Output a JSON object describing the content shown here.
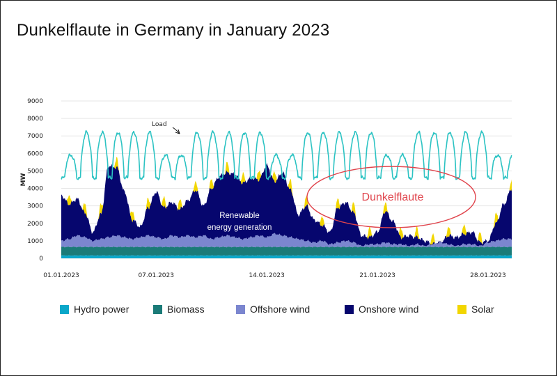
{
  "title": "Dunkelflaute in Germany in January 2023",
  "chart_data": {
    "type": "area",
    "title": "Dunkelflaute in Germany in January 2023",
    "ylabel": "MW",
    "ylim": [
      0,
      9000
    ],
    "yticks": [
      0,
      1000,
      2000,
      3000,
      4000,
      5000,
      6000,
      7000,
      8000,
      9000
    ],
    "xlim_day": [
      1,
      29.5
    ],
    "xticks": [
      {
        "label": "01.01.2023",
        "day": 1
      },
      {
        "label": "07.01.2023",
        "day": 7
      },
      {
        "label": "14.01.2023",
        "day": 14
      },
      {
        "label": "21.01.2023",
        "day": 21
      },
      {
        "label": "28.01.2023",
        "day": 28
      }
    ],
    "grid": true,
    "legend_position": "bottom",
    "colors": {
      "hydro": "#0aa7c9",
      "biomass": "#1b7b78",
      "offshore": "#7b86cf",
      "onshore": "#06066e",
      "solar": "#f2d600",
      "load": "#2cc3c3",
      "dunkelflaute": "#e0444c",
      "grid": "#e6e6e6"
    },
    "series": [
      {
        "name": "Hydro power",
        "key": "hydro"
      },
      {
        "name": "Biomass",
        "key": "biomass"
      },
      {
        "name": "Offshore wind",
        "key": "offshore"
      },
      {
        "name": "Onshore wind",
        "key": "onshore"
      },
      {
        "name": "Solar",
        "key": "solar"
      }
    ],
    "load": {
      "name": "Load",
      "daily_min_mw": 4600,
      "weekday_peak_mw": 7200,
      "weekend_peak_mw": 5900
    },
    "renewable_totals": {
      "days": [
        1,
        1.5,
        2,
        2.5,
        3,
        3.5,
        4,
        4.5,
        5,
        5.5,
        6,
        6.5,
        7,
        7.5,
        8,
        8.5,
        9,
        9.5,
        10,
        10.5,
        11,
        11.5,
        12,
        12.5,
        13,
        13.5,
        14,
        14.5,
        15,
        15.5,
        16,
        16.5,
        17,
        17.5,
        18,
        18.5,
        19,
        19.5,
        20,
        20.5,
        21,
        21.5,
        22,
        22.5,
        23,
        23.5,
        24,
        24.5,
        25,
        25.5,
        26,
        26.5,
        27,
        27.5,
        28,
        28.5,
        29,
        29.5
      ],
      "onshore_top_mw": [
        3600,
        3100,
        3400,
        2600,
        1500,
        2500,
        5300,
        5200,
        3800,
        2200,
        1800,
        2900,
        3800,
        2900,
        3200,
        2800,
        3300,
        3900,
        3000,
        4000,
        4700,
        4900,
        4800,
        4300,
        4600,
        4500,
        5300,
        4400,
        4900,
        3900,
        2500,
        3000,
        2200,
        1900,
        1500,
        2900,
        3200,
        2600,
        1300,
        1200,
        1500,
        2700,
        2100,
        1200,
        1300,
        1200,
        1000,
        800,
        900,
        1300,
        1200,
        1400,
        1500,
        900,
        1000,
        2000,
        3100,
        4000
      ],
      "offshore_top_mw": [
        1000,
        1100,
        1300,
        1200,
        1000,
        1100,
        1200,
        1300,
        1200,
        1100,
        1200,
        1300,
        1200,
        1100,
        1300,
        1200,
        1300,
        1200,
        1300,
        1100,
        1200,
        1300,
        1200,
        1100,
        1200,
        1300,
        1200,
        1400,
        1300,
        1200,
        1100,
        1000,
        900,
        1000,
        800,
        900,
        1000,
        900,
        700,
        800,
        800,
        900,
        800,
        800,
        700,
        800,
        700,
        800,
        900,
        800,
        700,
        800,
        800,
        700,
        900,
        1000,
        1100,
        1100
      ],
      "biomass_top_mw": 650,
      "hydro_top_mw": 160
    },
    "annotations": [
      {
        "text": "Load",
        "type": "arrow-label"
      },
      {
        "text": "Renewable energy generation",
        "lines": [
          "Renewable",
          "energy generation"
        ],
        "type": "label"
      },
      {
        "text": "Dunkelflaute",
        "type": "ellipse-label"
      }
    ]
  },
  "legend": [
    {
      "label": "Hydro power",
      "color": "#0aa7c9"
    },
    {
      "label": "Biomass",
      "color": "#1b7b78"
    },
    {
      "label": "Offshore wind",
      "color": "#7b86cf"
    },
    {
      "label": "Onshore wind",
      "color": "#06066e"
    },
    {
      "label": "Solar",
      "color": "#f2d600"
    }
  ]
}
